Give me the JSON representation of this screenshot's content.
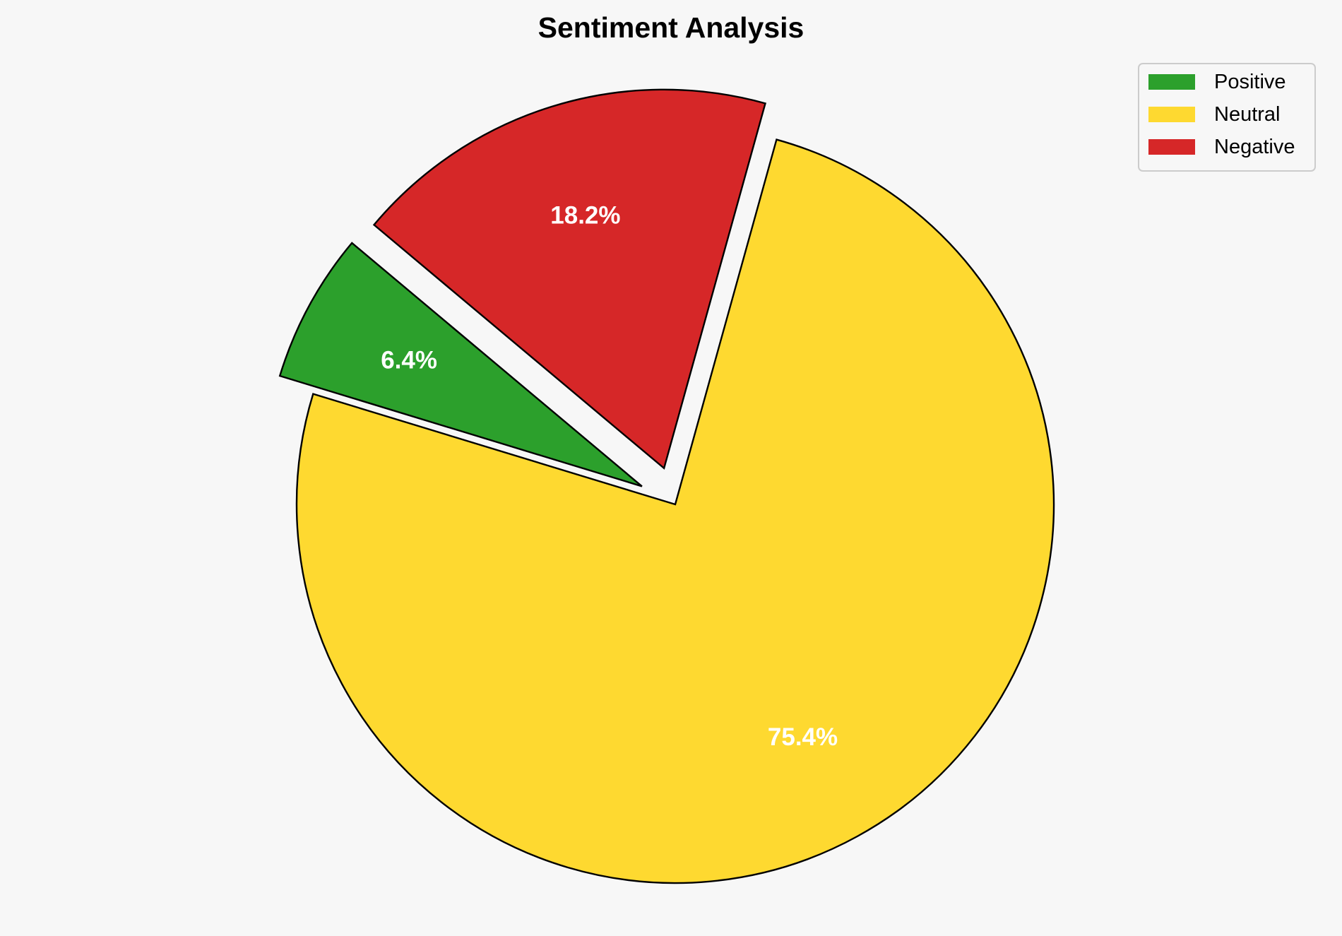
{
  "chart_data": {
    "type": "pie",
    "title": "Sentiment Analysis",
    "categories": [
      "Positive",
      "Neutral",
      "Negative"
    ],
    "values": [
      6.4,
      75.4,
      18.2
    ],
    "value_labels": [
      "6.4%",
      "75.4%",
      "18.2%"
    ],
    "colors": [
      "#2ca02c",
      "#fed930",
      "#d62728"
    ],
    "explode": [
      0.1,
      0,
      0.1
    ],
    "start_angle": 140,
    "counterclockwise": true,
    "legend_position": "top-right",
    "edge_color": "#000000",
    "label_color": "#ffffff",
    "background": "#f7f7f7"
  }
}
